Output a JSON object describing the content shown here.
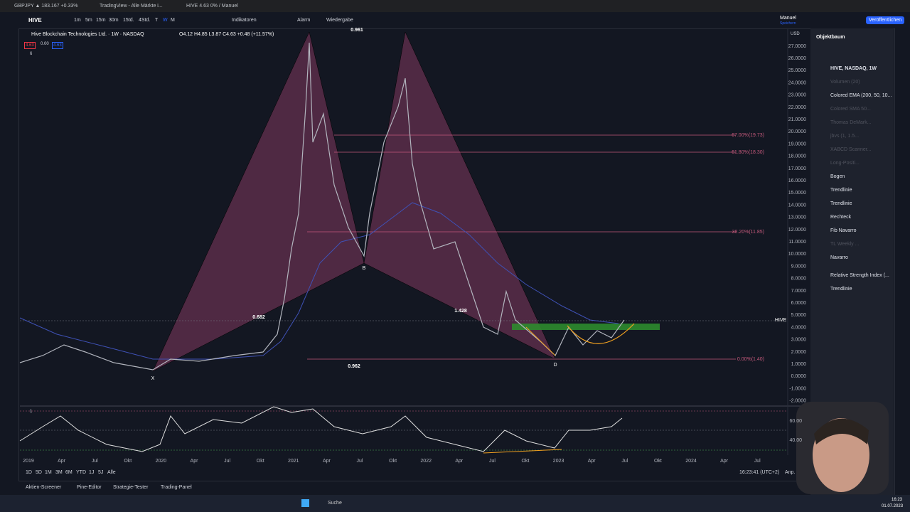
{
  "browser": {
    "tabs": [
      "GBPJPY ▲ 183.167 +0.33%",
      "TradingView - Alle Märkte i...",
      "HIVE 4.63 0% / Manuel"
    ]
  },
  "toolbar": {
    "symbol": "HIVE",
    "intervals": [
      "1m",
      "5m",
      "15m",
      "30m",
      "15td.",
      "4Std.",
      "T",
      "W",
      "M"
    ],
    "indicators": "Indikatoren",
    "alarm": "Alarm",
    "replay": "Wiedergabe",
    "layout_name": "Manuel",
    "save": "Speichern",
    "publish": "Veröffentlichen"
  },
  "chart": {
    "title": "Hive Blockchain Technologies Ltd. · 1W · NASDAQ",
    "ohlc": "O4.12 H4.85 L3.87 C4.63 +0.48 (+11.57%)",
    "bid": "4.63",
    "spread": "0.00",
    "ask": "4.63",
    "indicator_count": "6",
    "currency": "USD",
    "price_labels": [
      "27.0000",
      "26.0000",
      "25.0000",
      "24.0000",
      "23.0000",
      "22.0000",
      "21.0000",
      "20.0000",
      "19.0000",
      "18.0000",
      "17.0000",
      "16.0000",
      "15.0000",
      "14.0000",
      "13.0000",
      "12.0000",
      "11.0000",
      "10.0000",
      "9.0000",
      "8.0000",
      "7.0000",
      "6.0000",
      "5.0000",
      "4.0000",
      "3.0000",
      "2.0000",
      "1.0000",
      "0.0000",
      "-1.0000",
      "-2.0000"
    ],
    "fib_labels": [
      "67.00%(19.73)",
      "61.80%(18.30)",
      "38.20%(11.85)",
      "0.00%(1.40)"
    ],
    "pattern_points": [
      "X",
      "B",
      "D"
    ],
    "pattern_ratios": [
      "0.682",
      "1.428",
      "0.962",
      "0.961"
    ],
    "price_tag": "HIVE",
    "rsi_pane": "1",
    "rsi_labels": [
      "60.00",
      "40.00"
    ],
    "time_labels": [
      "2019",
      "Apr",
      "Jul",
      "Okt",
      "2020",
      "Apr",
      "Jul",
      "Okt",
      "2021",
      "Apr",
      "Jul",
      "Okt",
      "2022",
      "Apr",
      "Jul",
      "Okt",
      "2023",
      "Apr",
      "Jul",
      "Okt",
      "2024",
      "Apr",
      "Jul"
    ],
    "ranges": [
      "1D",
      "5D",
      "1M",
      "3M",
      "6M",
      "YTD",
      "1J",
      "5J",
      "Alle"
    ],
    "clock": "16:23:41 (UTC+2)",
    "adjust": "Anp."
  },
  "object_tree": {
    "title": "Objektbaum",
    "items": [
      "HIVE, NASDAQ, 1W",
      "Volumen (20)",
      "Colored EMA (200, 50, 10...",
      "Colored SMA 50...",
      "Thomas DeMark...",
      "jbvs (1, 1.5...",
      "XABCD Scanner...",
      "Long-Positi...",
      "Bogen",
      "Trendlinie",
      "Trendlinie",
      "Rechteck",
      "Fib Navarro",
      "TL Weekly ...",
      "Navarro",
      "Relative Strength Index (...",
      "Trendlinie"
    ]
  },
  "bottom_tabs": [
    "Aktien-Screener",
    "Pine-Editor",
    "Strategie-Tester",
    "Trading-Panel"
  ],
  "taskbar": {
    "search": "Suche",
    "time": "16:23",
    "date": "01.07.2023"
  }
}
